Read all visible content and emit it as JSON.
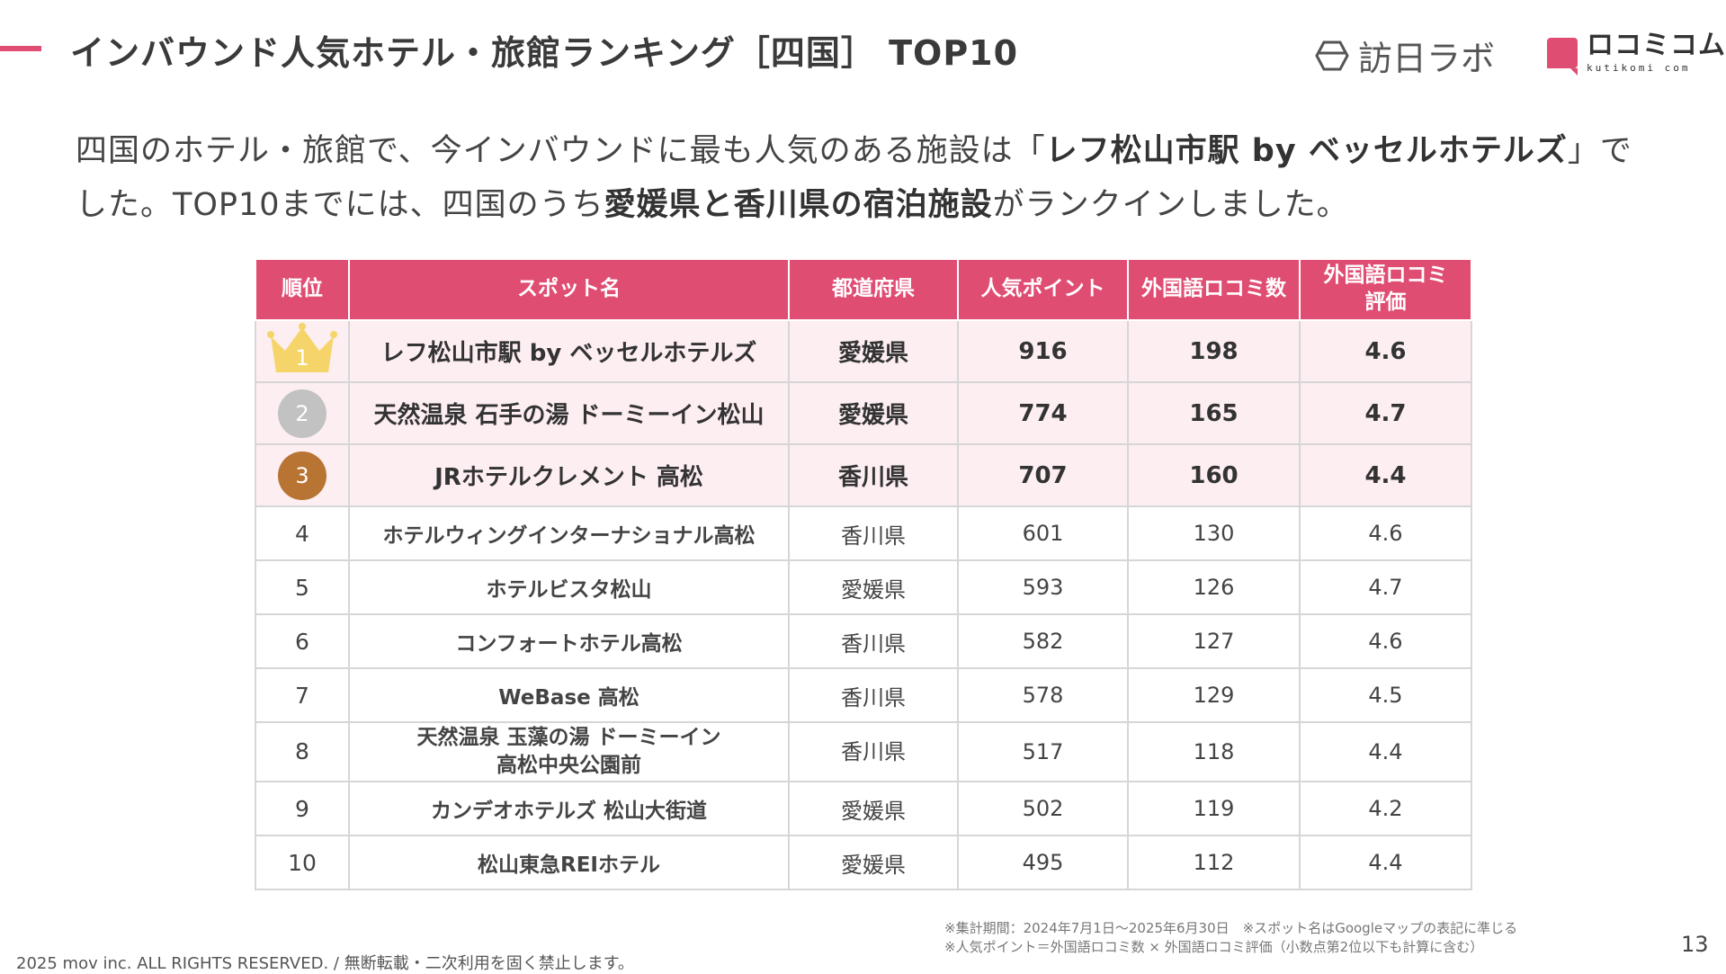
{
  "header": {
    "title": "インバウンド人気ホテル・旅館ランキング［四国］ TOP10",
    "logo_houjin": "訪日ラボ",
    "logo_kuchikomi_main": "ロコミコム",
    "logo_kuchikomi_sub": "kutikomi com"
  },
  "intro": {
    "part1": "四国のホテル・旅館で、今インバウンドに最も人気のある施設は「",
    "highlight1": "レフ松山市駅 by ベッセルホテルズ",
    "part2": "」でした。TOP10までには、四国のうち",
    "highlight2": "愛媛県と香川県の宿泊施設",
    "part3": "がランクインしました。"
  },
  "table": {
    "headers": [
      "順位",
      "スポット名",
      "都道府県",
      "人気ポイント",
      "外国語ロコミ数",
      "外国語ロコミ評価"
    ],
    "header_rating_line1": "外国語ロコミ",
    "header_rating_line2": "評価",
    "rows": [
      {
        "rank": "1",
        "spot": "レフ松山市駅 by ベッセルホテルズ",
        "pref": "愛媛県",
        "points": "916",
        "reviews": "198",
        "rating": "4.6"
      },
      {
        "rank": "2",
        "spot": "天然温泉 石手の湯 ドーミーイン松山",
        "pref": "愛媛県",
        "points": "774",
        "reviews": "165",
        "rating": "4.7"
      },
      {
        "rank": "3",
        "spot": "JRホテルクレメント 高松",
        "pref": "香川県",
        "points": "707",
        "reviews": "160",
        "rating": "4.4"
      },
      {
        "rank": "4",
        "spot": "ホテルウィングインターナショナル高松",
        "pref": "香川県",
        "points": "601",
        "reviews": "130",
        "rating": "4.6"
      },
      {
        "rank": "5",
        "spot": "ホテルビスタ松山",
        "pref": "愛媛県",
        "points": "593",
        "reviews": "126",
        "rating": "4.7"
      },
      {
        "rank": "6",
        "spot": "コンフォートホテル高松",
        "pref": "香川県",
        "points": "582",
        "reviews": "127",
        "rating": "4.6"
      },
      {
        "rank": "7",
        "spot": "WeBase 高松",
        "pref": "香川県",
        "points": "578",
        "reviews": "129",
        "rating": "4.5"
      },
      {
        "rank": "8",
        "spot_line1": "天然温泉 玉藻の湯 ドーミーイン",
        "spot_line2": "高松中央公園前",
        "pref": "香川県",
        "points": "517",
        "reviews": "118",
        "rating": "4.4"
      },
      {
        "rank": "9",
        "spot": "カンデオホテルズ 松山大街道",
        "pref": "愛媛県",
        "points": "502",
        "reviews": "119",
        "rating": "4.2"
      },
      {
        "rank": "10",
        "spot": "松山東急REIホテル",
        "pref": "愛媛県",
        "points": "495",
        "reviews": "112",
        "rating": "4.4"
      }
    ]
  },
  "footnotes": {
    "line1": "※集計期間：2024年7月1日〜2025年6月30日　※スポット名はGoogleマップの表記に準じる",
    "line2": "※人気ポイント＝外国語ロコミ数 × 外国語ロコミ評価（小数点第2位以下も計算に含む）"
  },
  "copyright": "2025 mov inc. ALL RIGHTS RESERVED. / 無断転載・二次利用を固く禁止します。",
  "page_number": "13",
  "colors": {
    "accent": "#e04d73",
    "top3_row_bg": "#fdeef2",
    "gold": "#f5d46a",
    "silver": "#c2c2c2",
    "bronze": "#b87433"
  },
  "icons": {
    "rank1": "crown-icon",
    "rank2": "silver-medal-icon",
    "rank3": "bronze-medal-icon",
    "houjin_logo": "hexagon-icon",
    "kuchikomi_logo": "speech-bubble-icon"
  }
}
